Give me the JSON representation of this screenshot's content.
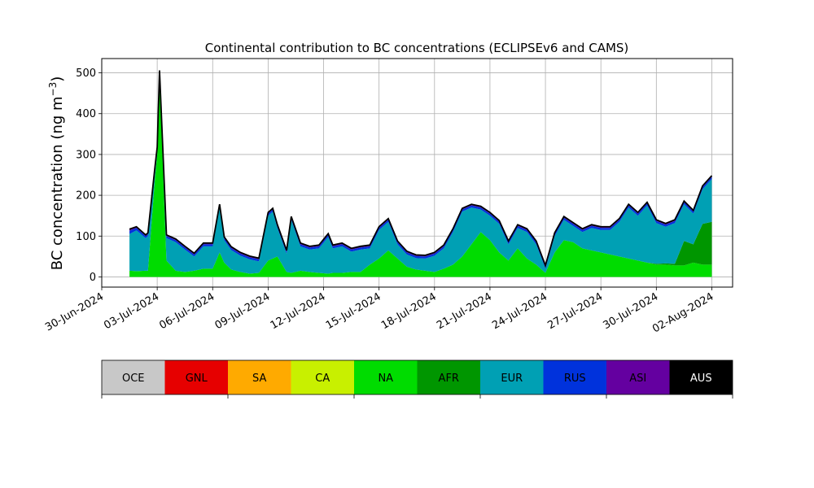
{
  "chart_data": {
    "type": "area",
    "title": "Continental contribution to BC concentrations (ECLIPSEv6 and CAMS)",
    "ylabel": "BC concentration (ng m",
    "ylabel_sup": "−3",
    "ylabel_close": ")",
    "xlabel": "",
    "ylim": [
      -25,
      535
    ],
    "xlim": [
      "2024-06-30T00:00",
      "2024-08-03T03:00"
    ],
    "grid": true,
    "y_ticks": [
      0,
      100,
      200,
      300,
      400,
      500
    ],
    "x_ticks": [
      "30-Jun-2024",
      "03-Jul-2024",
      "06-Jul-2024",
      "09-Jul-2024",
      "12-Jul-2024",
      "15-Jul-2024",
      "18-Jul-2024",
      "21-Jul-2024",
      "24-Jul-2024",
      "27-Jul-2024",
      "30-Jul-2024",
      "02-Aug-2024"
    ],
    "x_tick_dates": [
      "2024-06-30",
      "2024-07-03",
      "2024-07-06",
      "2024-07-09",
      "2024-07-12",
      "2024-07-15",
      "2024-07-18",
      "2024-07-21",
      "2024-07-24",
      "2024-07-27",
      "2024-07-30",
      "2024-08-02"
    ],
    "x": [
      "2024-07-01T12:00",
      "2024-07-01T21:00",
      "2024-07-02T09:00",
      "2024-07-02T12:00",
      "2024-07-02T21:00",
      "2024-07-03T00:00",
      "2024-07-03T03:00",
      "2024-07-03T12:00",
      "2024-07-04T00:00",
      "2024-07-04T12:00",
      "2024-07-05T00:00",
      "2024-07-05T12:00",
      "2024-07-06T00:00",
      "2024-07-06T09:00",
      "2024-07-06T15:00",
      "2024-07-07T00:00",
      "2024-07-07T12:00",
      "2024-07-08T00:00",
      "2024-07-08T12:00",
      "2024-07-09T00:00",
      "2024-07-09T06:00",
      "2024-07-09T12:00",
      "2024-07-10T00:00",
      "2024-07-10T06:00",
      "2024-07-10T18:00",
      "2024-07-11T06:00",
      "2024-07-11T18:00",
      "2024-07-12T06:00",
      "2024-07-12T12:00",
      "2024-07-13T00:00",
      "2024-07-13T12:00",
      "2024-07-14T00:00",
      "2024-07-14T12:00",
      "2024-07-15T00:00",
      "2024-07-15T12:00",
      "2024-07-16T00:00",
      "2024-07-16T12:00",
      "2024-07-17T00:00",
      "2024-07-17T12:00",
      "2024-07-18T00:00",
      "2024-07-18T12:00",
      "2024-07-19T00:00",
      "2024-07-19T12:00",
      "2024-07-20T00:00",
      "2024-07-20T12:00",
      "2024-07-21T00:00",
      "2024-07-21T12:00",
      "2024-07-22T00:00",
      "2024-07-22T12:00",
      "2024-07-23T00:00",
      "2024-07-23T12:00",
      "2024-07-24T00:00",
      "2024-07-24T12:00",
      "2024-07-25T00:00",
      "2024-07-25T12:00",
      "2024-07-26T00:00",
      "2024-07-26T12:00",
      "2024-07-27T00:00",
      "2024-07-27T12:00",
      "2024-07-28T00:00",
      "2024-07-28T12:00",
      "2024-07-29T00:00",
      "2024-07-29T12:00",
      "2024-07-30T00:00",
      "2024-07-30T12:00",
      "2024-07-31T00:00",
      "2024-07-31T12:00",
      "2024-08-01T00:00",
      "2024-08-01T12:00",
      "2024-08-02T00:00"
    ],
    "series": [
      {
        "name": "OCE",
        "color": "#c8c8c8",
        "values": [
          0,
          0,
          0,
          0,
          0,
          0,
          0,
          0,
          0,
          0,
          0,
          0,
          0,
          0,
          0,
          0,
          0,
          0,
          0,
          0,
          0,
          0,
          0,
          0,
          0,
          0,
          0,
          0,
          0,
          0,
          0,
          0,
          0,
          0,
          0,
          0,
          0,
          0,
          0,
          0,
          0,
          0,
          0,
          0,
          0,
          0,
          0,
          0,
          0,
          0,
          0,
          0,
          0,
          0,
          0,
          0,
          0,
          0,
          0,
          0,
          0,
          0,
          0,
          0,
          0,
          0,
          0,
          0,
          0,
          0
        ]
      },
      {
        "name": "GNL",
        "color": "#e60000",
        "values": [
          0,
          0,
          0,
          0,
          0,
          0,
          0,
          0,
          0,
          0,
          0,
          0,
          0,
          0,
          0,
          0,
          0,
          0,
          0,
          0,
          0,
          0,
          0,
          0,
          0,
          0,
          0,
          0,
          0,
          0,
          0,
          0,
          0,
          0,
          0,
          0,
          0,
          0,
          0,
          0,
          0,
          0,
          0,
          0,
          0,
          0,
          0,
          0,
          0,
          0,
          0,
          0,
          0,
          0,
          0,
          0,
          0,
          0,
          0,
          0,
          0,
          0,
          0,
          0,
          0,
          0,
          0,
          0,
          0,
          0
        ]
      },
      {
        "name": "SA",
        "color": "#ffaa00",
        "values": [
          0,
          0,
          0,
          0,
          0,
          0,
          0,
          0,
          0,
          0,
          0,
          0,
          0,
          0,
          0,
          0,
          0,
          0,
          0,
          0,
          0,
          0,
          0,
          0,
          0,
          0,
          0,
          0,
          0,
          0,
          0,
          0,
          0,
          0,
          0,
          0,
          0,
          0,
          0,
          0,
          0,
          0,
          0,
          0,
          0,
          0,
          0,
          0,
          0,
          0,
          0,
          0,
          0,
          0,
          0,
          0,
          0,
          0,
          0,
          0,
          0,
          0,
          0,
          0,
          0,
          0,
          0,
          0,
          0,
          0
        ]
      },
      {
        "name": "CA",
        "color": "#c8f000",
        "values": [
          0,
          0,
          0,
          0,
          0,
          0,
          0,
          0,
          0,
          0,
          0,
          0,
          0,
          0,
          0,
          0,
          0,
          0,
          0,
          0,
          0,
          0,
          0,
          0,
          0,
          0,
          0,
          0,
          0,
          0,
          0,
          0,
          0,
          0,
          0,
          0,
          0,
          0,
          0,
          0,
          0,
          0,
          0,
          0,
          0,
          0,
          0,
          0,
          0,
          0,
          0,
          0,
          0,
          0,
          0,
          0,
          0,
          0,
          0,
          0,
          0,
          0,
          0,
          0,
          0,
          0,
          0,
          0,
          0,
          0
        ]
      },
      {
        "name": "NA",
        "color": "#00dc00",
        "values": [
          15,
          14,
          15,
          15,
          240,
          300,
          490,
          40,
          15,
          12,
          15,
          20,
          20,
          60,
          35,
          18,
          12,
          8,
          10,
          40,
          45,
          50,
          12,
          10,
          15,
          12,
          10,
          8,
          10,
          10,
          12,
          12,
          30,
          45,
          65,
          45,
          25,
          18,
          15,
          12,
          20,
          30,
          50,
          80,
          110,
          90,
          60,
          40,
          70,
          45,
          30,
          10,
          60,
          90,
          85,
          70,
          65,
          60,
          55,
          50,
          45,
          40,
          35,
          30,
          30,
          28,
          28,
          35,
          30,
          30
        ]
      },
      {
        "name": "AFR",
        "color": "#009600",
        "values": [
          0,
          0,
          0,
          0,
          0,
          0,
          0,
          0,
          0,
          0,
          0,
          0,
          0,
          0,
          0,
          0,
          0,
          0,
          0,
          0,
          0,
          0,
          0,
          0,
          0,
          0,
          0,
          0,
          0,
          0,
          0,
          0,
          0,
          0,
          0,
          0,
          0,
          0,
          0,
          0,
          0,
          0,
          0,
          0,
          0,
          0,
          0,
          0,
          0,
          0,
          0,
          0,
          0,
          0,
          0,
          0,
          0,
          0,
          0,
          0,
          0,
          0,
          0,
          2,
          3,
          4,
          60,
          45,
          100,
          105
        ]
      },
      {
        "name": "EUR",
        "color": "#00a0b4",
        "values": [
          90,
          100,
          80,
          85,
          20,
          10,
          8,
          55,
          70,
          55,
          35,
          55,
          55,
          110,
          55,
          48,
          40,
          35,
          28,
          110,
          115,
          70,
          45,
          130,
          60,
          55,
          60,
          90,
          60,
          65,
          50,
          55,
          40,
          70,
          70,
          35,
          30,
          28,
          30,
          40,
          50,
          80,
          110,
          90,
          55,
          60,
          70,
          40,
          50,
          65,
          50,
          10,
          40,
          50,
          40,
          40,
          55,
          55,
          60,
          85,
          125,
          110,
          140,
          100,
          90,
          100,
          90,
          75,
          85,
          105
        ]
      },
      {
        "name": "RUS",
        "color": "#0032dc",
        "values": [
          8,
          6,
          5,
          5,
          5,
          5,
          5,
          5,
          5,
          5,
          5,
          5,
          5,
          5,
          5,
          5,
          5,
          5,
          5,
          5,
          5,
          5,
          5,
          5,
          5,
          5,
          5,
          5,
          5,
          5,
          5,
          5,
          5,
          5,
          5,
          5,
          5,
          5,
          5,
          5,
          5,
          5,
          5,
          5,
          5,
          5,
          5,
          5,
          5,
          5,
          5,
          5,
          5,
          5,
          5,
          5,
          5,
          5,
          5,
          5,
          5,
          5,
          5,
          5,
          5,
          5,
          5,
          5,
          5,
          5
        ]
      },
      {
        "name": "ASI",
        "color": "#6400a0",
        "values": [
          4,
          3,
          3,
          3,
          3,
          3,
          3,
          3,
          3,
          3,
          3,
          3,
          3,
          3,
          3,
          3,
          3,
          3,
          3,
          3,
          3,
          3,
          3,
          3,
          3,
          3,
          3,
          3,
          3,
          3,
          3,
          3,
          3,
          3,
          3,
          3,
          3,
          3,
          3,
          3,
          3,
          3,
          3,
          3,
          3,
          3,
          3,
          3,
          3,
          3,
          3,
          3,
          3,
          3,
          3,
          3,
          3,
          3,
          3,
          3,
          3,
          3,
          3,
          3,
          3,
          3,
          3,
          3,
          3,
          3
        ]
      },
      {
        "name": "AUS",
        "color": "#000000",
        "values": [
          0,
          0,
          0,
          0,
          0,
          0,
          0,
          0,
          0,
          0,
          0,
          0,
          0,
          0,
          0,
          0,
          0,
          0,
          0,
          0,
          0,
          0,
          0,
          0,
          0,
          0,
          0,
          0,
          0,
          0,
          0,
          0,
          0,
          0,
          0,
          0,
          0,
          0,
          0,
          0,
          0,
          0,
          0,
          0,
          0,
          0,
          0,
          0,
          0,
          0,
          0,
          0,
          0,
          0,
          0,
          0,
          0,
          0,
          0,
          0,
          0,
          0,
          0,
          0,
          0,
          0,
          0,
          0,
          0,
          0
        ]
      }
    ],
    "total_line_color": "#000000",
    "legend": {
      "placement": "bottom",
      "label_color_dark": "#000000",
      "label_color_light": "#ffffff"
    }
  }
}
